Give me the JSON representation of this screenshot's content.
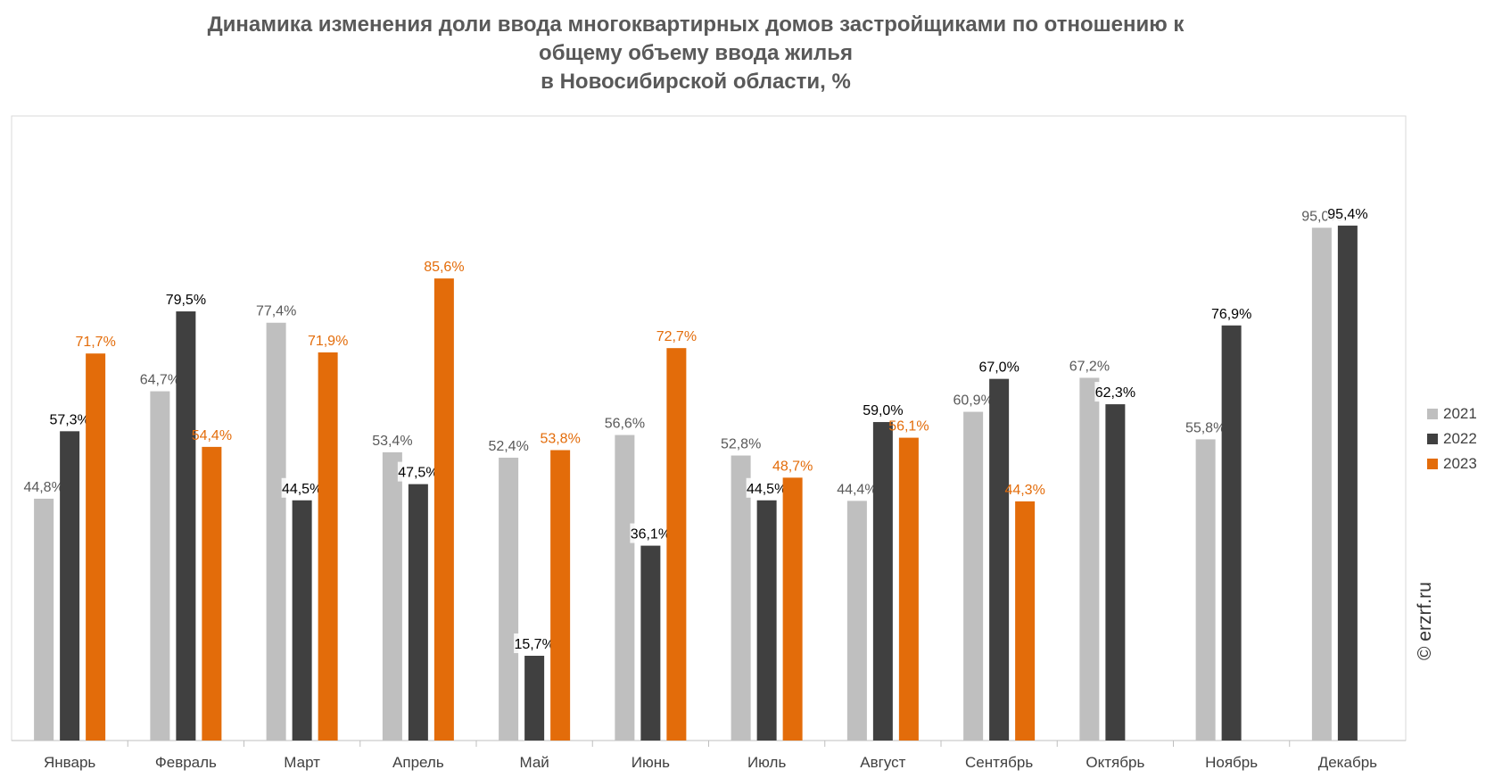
{
  "title_lines": [
    "Динамика изменения доли ввода многоквартирных домов застройщиками по отношению к",
    "общему объему ввода жилья",
    "в Новосибирской области, %"
  ],
  "watermark": "© erzrf.ru",
  "chart_data": {
    "type": "bar",
    "title": "Динамика изменения доли ввода многоквартирных домов застройщиками по отношению к общему объему ввода жилья в Новосибирской области, %",
    "categories": [
      "Январь",
      "Февраль",
      "Март",
      "Апрель",
      "Май",
      "Июнь",
      "Июль",
      "Август",
      "Сентябрь",
      "Октябрь",
      "Ноябрь",
      "Декабрь"
    ],
    "series": [
      {
        "name": "2021",
        "color": "#bfbfbf",
        "label_color": "#595959",
        "values": [
          44.8,
          64.7,
          77.4,
          53.4,
          52.4,
          56.6,
          52.8,
          44.4,
          60.9,
          67.2,
          55.8,
          95.0
        ],
        "labels": [
          "44,8%",
          "64,7%",
          "77,4%",
          "53,4%",
          "52,4%",
          "56,6%",
          "52,8%",
          "44,4%",
          "60,9%",
          "67,2%",
          "55,8%",
          "95,0%"
        ]
      },
      {
        "name": "2022",
        "color": "#404040",
        "label_color": "#000000",
        "values": [
          57.3,
          79.5,
          44.5,
          47.5,
          15.7,
          36.1,
          44.5,
          59.0,
          67.0,
          62.3,
          76.9,
          95.4
        ],
        "labels": [
          "57,3%",
          "79,5%",
          "44,5%",
          "47,5%",
          "15,7%",
          "36,1%",
          "44,5%",
          "59,0%",
          "67,0%",
          "62,3%",
          "76,9%",
          "95,4%"
        ]
      },
      {
        "name": "2023",
        "color": "#e36c0a",
        "label_color": "#e36c0a",
        "values": [
          71.7,
          54.4,
          71.9,
          85.6,
          53.8,
          72.7,
          48.7,
          56.1,
          44.3,
          null,
          null,
          null
        ],
        "labels": [
          "71,7%",
          "54,4%",
          "71,9%",
          "85,6%",
          "53,8%",
          "72,7%",
          "48,7%",
          "56,1%",
          "44,3%",
          "",
          "",
          ""
        ]
      }
    ],
    "ylim": [
      0,
      100
    ],
    "grid": false,
    "legend_position": "right"
  }
}
